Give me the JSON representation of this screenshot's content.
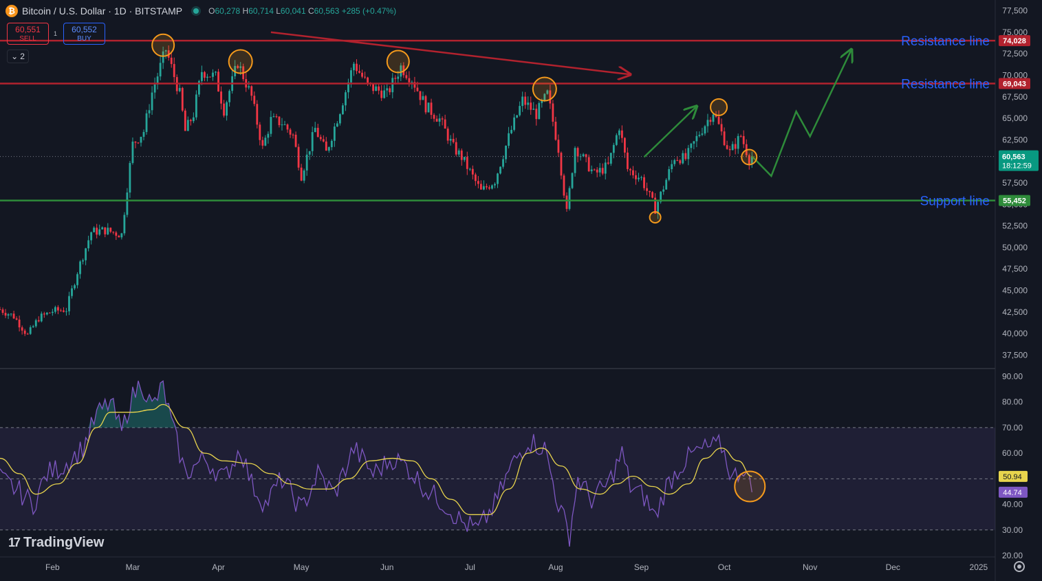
{
  "header": {
    "symbol_icon": "bitcoin-icon",
    "title": "Bitcoin / U.S. Dollar · 1D · BITSTAMP",
    "ohlc": {
      "o_label": "O",
      "o": "60,278",
      "h_label": "H",
      "h": "60,714",
      "l_label": "L",
      "l": "60,041",
      "c_label": "C",
      "c": "60,563",
      "change": "+285 (+0.47%)"
    }
  },
  "trade": {
    "sell_price": "60,551",
    "sell_label": "SELL",
    "spread": "1",
    "buy_price": "60,552",
    "buy_label": "BUY"
  },
  "indicator_toggle": {
    "count": "2"
  },
  "branding": {
    "logo_text": "TradingView"
  },
  "colors": {
    "bull": "#26a69a",
    "bear": "#f23645",
    "resistance": "#b2222e",
    "support": "#2e8b3a",
    "annotation": "#f59a1c",
    "rsi": "#7e57c2",
    "rsi_ma": "#e8d44d",
    "label_blue": "#2962ff"
  },
  "chart_data": [
    {
      "type": "candlestick",
      "title": "Bitcoin / U.S. Dollar · 1D · BITSTAMP",
      "xlabel": "",
      "ylabel": "",
      "ylim": [
        37500,
        77500
      ],
      "y_ticks": [
        "37,500",
        "40,000",
        "42,500",
        "45,000",
        "47,500",
        "50,000",
        "52,500",
        "55,000",
        "57,500",
        "60,000",
        "62,500",
        "65,000",
        "67,500",
        "70,000",
        "72,500",
        "75,000",
        "77,500"
      ],
      "x_tick_labels": [
        "Feb",
        "Mar",
        "Apr",
        "May",
        "Jun",
        "Jul",
        "Aug",
        "Sep",
        "Oct",
        "Nov",
        "Dec",
        "2025"
      ],
      "x_tick_dates": [
        "2024-02-01",
        "2024-03-01",
        "2024-04-01",
        "2024-05-01",
        "2024-06-01",
        "2024-07-01",
        "2024-08-01",
        "2024-09-01",
        "2024-10-01",
        "2024-11-01",
        "2024-12-01",
        "2025-01-01"
      ],
      "x_range": [
        "2024-01-13",
        "2025-01-07"
      ],
      "price_path": [
        [
          "2024-01-13",
          42800
        ],
        [
          "2024-01-18",
          42000
        ],
        [
          "2024-01-23",
          39800
        ],
        [
          "2024-01-27",
          41800
        ],
        [
          "2024-02-01",
          42600
        ],
        [
          "2024-02-06",
          42800
        ],
        [
          "2024-02-10",
          47200
        ],
        [
          "2024-02-15",
          51800
        ],
        [
          "2024-02-20",
          52000
        ],
        [
          "2024-02-26",
          51500
        ],
        [
          "2024-02-28",
          57000
        ],
        [
          "2024-03-01",
          62000
        ],
        [
          "2024-03-05",
          63500
        ],
        [
          "2024-03-08",
          68000
        ],
        [
          "2024-03-13",
          73000
        ],
        [
          "2024-03-18",
          67800
        ],
        [
          "2024-03-20",
          63500
        ],
        [
          "2024-03-23",
          65500
        ],
        [
          "2024-03-26",
          70500
        ],
        [
          "2024-03-31",
          69800
        ],
        [
          "2024-04-03",
          66000
        ],
        [
          "2024-04-08",
          71500
        ],
        [
          "2024-04-13",
          67500
        ],
        [
          "2024-04-17",
          61500
        ],
        [
          "2024-04-20",
          64800
        ],
        [
          "2024-04-24",
          64500
        ],
        [
          "2024-04-28",
          63000
        ],
        [
          "2024-05-01",
          58400
        ],
        [
          "2024-05-06",
          63800
        ],
        [
          "2024-05-10",
          61000
        ],
        [
          "2024-05-15",
          66000
        ],
        [
          "2024-05-20",
          71400
        ],
        [
          "2024-05-25",
          68800
        ],
        [
          "2024-06-01",
          67800
        ],
        [
          "2024-06-06",
          71000
        ],
        [
          "2024-06-10",
          69600
        ],
        [
          "2024-06-15",
          66400
        ],
        [
          "2024-06-20",
          64900
        ],
        [
          "2024-06-25",
          61600
        ],
        [
          "2024-06-28",
          60500
        ],
        [
          "2024-07-05",
          56500
        ],
        [
          "2024-07-10",
          57800
        ],
        [
          "2024-07-15",
          62800
        ],
        [
          "2024-07-20",
          67100
        ],
        [
          "2024-07-25",
          65500
        ],
        [
          "2024-07-29",
          67800
        ],
        [
          "2024-08-02",
          61500
        ],
        [
          "2024-08-05",
          54000
        ],
        [
          "2024-08-08",
          61700
        ],
        [
          "2024-08-15",
          58500
        ],
        [
          "2024-08-20",
          59500
        ],
        [
          "2024-08-24",
          64100
        ],
        [
          "2024-08-27",
          59100
        ],
        [
          "2024-09-01",
          58000
        ],
        [
          "2024-09-06",
          54500
        ],
        [
          "2024-09-09",
          57000
        ],
        [
          "2024-09-13",
          60500
        ],
        [
          "2024-09-17",
          60300
        ],
        [
          "2024-09-22",
          63300
        ],
        [
          "2024-09-27",
          65800
        ],
        [
          "2024-09-30",
          63300
        ],
        [
          "2024-10-03",
          61000
        ],
        [
          "2024-10-07",
          63000
        ],
        [
          "2024-10-10",
          60300
        ],
        [
          "2024-10-11",
          60563
        ]
      ],
      "horizontal_lines": [
        {
          "name": "Resistance line",
          "value": 74028,
          "price_label": "74,028",
          "color": "#b2222e"
        },
        {
          "name": "Resistance line",
          "value": 69043,
          "price_label": "69,043",
          "color": "#b2222e"
        },
        {
          "name": "Support line",
          "value": 55452,
          "price_label": "55,452",
          "color": "#2e8b3a"
        }
      ],
      "current_price": {
        "value": 60563,
        "label": "60,563",
        "countdown": "18:12:59"
      },
      "trend_arrow_down": [
        [
          "2024-04-20",
          75000
        ],
        [
          "2024-08-28",
          70100
        ]
      ],
      "projection_up_1": [
        [
          "2024-09-02",
          60500
        ],
        [
          "2024-09-21",
          66400
        ]
      ],
      "projection_path": [
        [
          "2024-10-11",
          60600
        ],
        [
          "2024-10-18",
          58300
        ],
        [
          "2024-10-27",
          65800
        ],
        [
          "2024-11-01",
          62900
        ],
        [
          "2024-11-16",
          73000
        ]
      ],
      "circled_points": [
        {
          "date": "2024-03-12",
          "value": 73500
        },
        {
          "date": "2024-04-09",
          "value": 71600
        },
        {
          "date": "2024-06-05",
          "value": 71600
        },
        {
          "date": "2024-07-28",
          "value": 68400
        },
        {
          "date": "2024-09-06",
          "value": 53500
        },
        {
          "date": "2024-09-29",
          "value": 66300
        },
        {
          "date": "2024-10-10",
          "value": 60500
        }
      ]
    },
    {
      "type": "line",
      "title": "",
      "xlabel": "",
      "ylabel": "",
      "ylim": [
        20,
        90
      ],
      "y_ticks": [
        "20.00",
        "30.00",
        "40.00",
        "50.00",
        "60.00",
        "70.00",
        "80.00",
        "90.00"
      ],
      "bands": {
        "upper": 70,
        "middle": 50,
        "lower": 30
      },
      "series": [
        {
          "name": "",
          "color": "#7e57c2",
          "last_label": "44.74",
          "values": [
            [
              "2024-01-13",
              50
            ],
            [
              "2024-01-20",
              45
            ],
            [
              "2024-01-25",
              40
            ],
            [
              "2024-01-30",
              52
            ],
            [
              "2024-02-05",
              55
            ],
            [
              "2024-02-12",
              62
            ],
            [
              "2024-02-17",
              75
            ],
            [
              "2024-02-22",
              80
            ],
            [
              "2024-02-26",
              68
            ],
            [
              "2024-02-29",
              80
            ],
            [
              "2024-03-04",
              88
            ],
            [
              "2024-03-08",
              78
            ],
            [
              "2024-03-12",
              86
            ],
            [
              "2024-03-15",
              72
            ],
            [
              "2024-03-20",
              52
            ],
            [
              "2024-03-27",
              58
            ],
            [
              "2024-04-03",
              50
            ],
            [
              "2024-04-09",
              62
            ],
            [
              "2024-04-13",
              48
            ],
            [
              "2024-04-18",
              40
            ],
            [
              "2024-04-24",
              50
            ],
            [
              "2024-05-01",
              38
            ],
            [
              "2024-05-07",
              52
            ],
            [
              "2024-05-13",
              44
            ],
            [
              "2024-05-20",
              62
            ],
            [
              "2024-05-27",
              52
            ],
            [
              "2024-06-03",
              58
            ],
            [
              "2024-06-08",
              55
            ],
            [
              "2024-06-15",
              46
            ],
            [
              "2024-06-22",
              40
            ],
            [
              "2024-06-28",
              33
            ],
            [
              "2024-07-04",
              30
            ],
            [
              "2024-07-10",
              40
            ],
            [
              "2024-07-16",
              55
            ],
            [
              "2024-07-22",
              65
            ],
            [
              "2024-07-28",
              62
            ],
            [
              "2024-08-02",
              40
            ],
            [
              "2024-08-06",
              28
            ],
            [
              "2024-08-09",
              50
            ],
            [
              "2024-08-14",
              42
            ],
            [
              "2024-08-20",
              48
            ],
            [
              "2024-08-25",
              60
            ],
            [
              "2024-08-28",
              47
            ],
            [
              "2024-09-02",
              43
            ],
            [
              "2024-09-06",
              35
            ],
            [
              "2024-09-10",
              47
            ],
            [
              "2024-09-15",
              55
            ],
            [
              "2024-09-20",
              60
            ],
            [
              "2024-09-25",
              62
            ],
            [
              "2024-09-30",
              63
            ],
            [
              "2024-10-04",
              50
            ],
            [
              "2024-10-08",
              55
            ],
            [
              "2024-10-11",
              44.74
            ]
          ]
        },
        {
          "name": "",
          "color": "#e8d44d",
          "last_label": "50.94",
          "values": [
            [
              "2024-01-13",
              58
            ],
            [
              "2024-01-20",
              52
            ],
            [
              "2024-01-26",
              44
            ],
            [
              "2024-02-03",
              48
            ],
            [
              "2024-02-10",
              56
            ],
            [
              "2024-02-17",
              70
            ],
            [
              "2024-02-22",
              76
            ],
            [
              "2024-03-01",
              76
            ],
            [
              "2024-03-08",
              77
            ],
            [
              "2024-03-12",
              79
            ],
            [
              "2024-03-20",
              70
            ],
            [
              "2024-03-27",
              60
            ],
            [
              "2024-04-03",
              57
            ],
            [
              "2024-04-12",
              56
            ],
            [
              "2024-04-20",
              52
            ],
            [
              "2024-04-27",
              48
            ],
            [
              "2024-05-04",
              46
            ],
            [
              "2024-05-11",
              46
            ],
            [
              "2024-05-18",
              50
            ],
            [
              "2024-05-26",
              57
            ],
            [
              "2024-06-03",
              58
            ],
            [
              "2024-06-10",
              57
            ],
            [
              "2024-06-17",
              50
            ],
            [
              "2024-06-24",
              42
            ],
            [
              "2024-07-01",
              36
            ],
            [
              "2024-07-08",
              36
            ],
            [
              "2024-07-15",
              46
            ],
            [
              "2024-07-22",
              60
            ],
            [
              "2024-07-27",
              62
            ],
            [
              "2024-08-03",
              55
            ],
            [
              "2024-08-10",
              46
            ],
            [
              "2024-08-17",
              44
            ],
            [
              "2024-08-23",
              48
            ],
            [
              "2024-08-29",
              51
            ],
            [
              "2024-09-05",
              47
            ],
            [
              "2024-09-11",
              44
            ],
            [
              "2024-09-18",
              48
            ],
            [
              "2024-09-24",
              58
            ],
            [
              "2024-09-30",
              62
            ],
            [
              "2024-10-06",
              57
            ],
            [
              "2024-10-11",
              50.94
            ]
          ]
        }
      ],
      "circled_points": [
        {
          "date": "2024-10-10",
          "value": 47
        }
      ]
    }
  ]
}
